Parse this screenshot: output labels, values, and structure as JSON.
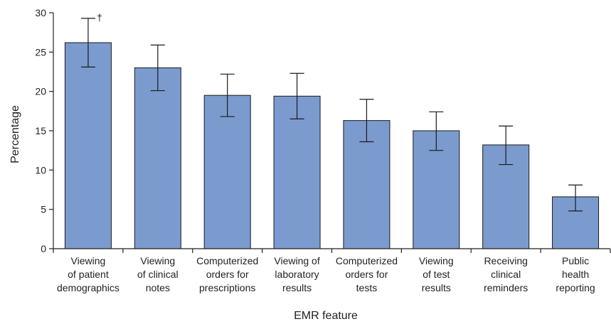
{
  "chart_data": {
    "type": "bar",
    "categories": [
      [
        "Viewing",
        "of patient",
        "demographics"
      ],
      [
        "Viewing",
        "of clinical",
        "notes"
      ],
      [
        "Computerized",
        "orders for",
        "prescriptions"
      ],
      [
        "Viewing of",
        "laboratory",
        "results"
      ],
      [
        "Computerized",
        "orders for",
        "tests"
      ],
      [
        "Viewing",
        "of test",
        "results"
      ],
      [
        "Receiving",
        "clinical",
        "reminders"
      ],
      [
        "Public",
        "health",
        "reporting"
      ]
    ],
    "values": [
      26.2,
      23.0,
      19.5,
      19.4,
      16.3,
      15.0,
      13.2,
      6.6
    ],
    "error_low": [
      23.1,
      20.1,
      16.8,
      16.5,
      13.6,
      12.5,
      10.7,
      4.8
    ],
    "error_high": [
      29.3,
      25.9,
      22.2,
      22.3,
      19.0,
      17.4,
      15.6,
      8.1
    ],
    "annotations": [
      {
        "category_index": 0,
        "text": "†"
      }
    ],
    "xlabel": "EMR feature",
    "ylabel": "Percentage",
    "ylim": [
      0,
      30
    ],
    "yticks": [
      "0",
      "5",
      "10",
      "15",
      "20",
      "25",
      "30"
    ],
    "grid": false,
    "bar_color": "#7b9bcf",
    "bar_edge_color": "#1a1a1a"
  }
}
